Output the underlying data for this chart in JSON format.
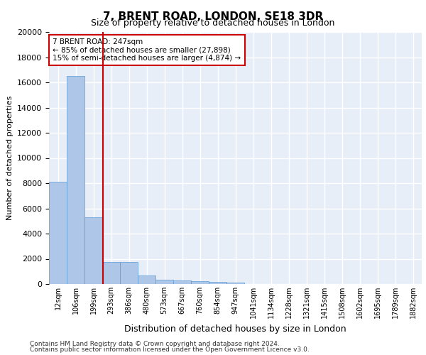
{
  "title": "7, BRENT ROAD, LONDON, SE18 3DR",
  "subtitle": "Size of property relative to detached houses in London",
  "xlabel": "Distribution of detached houses by size in London",
  "ylabel": "Number of detached properties",
  "bar_values": [
    8100,
    16500,
    5300,
    1750,
    1750,
    700,
    350,
    275,
    225,
    175,
    100,
    0,
    0,
    0,
    0,
    0,
    0,
    0,
    0,
    0,
    0
  ],
  "bar_color": "#aec6e8",
  "bar_edge_color": "#5b9bd5",
  "x_labels": [
    "12sqm",
    "106sqm",
    "199sqm",
    "293sqm",
    "386sqm",
    "480sqm",
    "573sqm",
    "667sqm",
    "760sqm",
    "854sqm",
    "947sqm",
    "1041sqm",
    "1134sqm",
    "1228sqm",
    "1321sqm",
    "1415sqm",
    "1508sqm",
    "1602sqm",
    "1695sqm",
    "1789sqm",
    "1882sqm"
  ],
  "ylim": [
    0,
    20000
  ],
  "yticks": [
    0,
    2000,
    4000,
    6000,
    8000,
    10000,
    12000,
    14000,
    16000,
    18000,
    20000
  ],
  "vline_pos": 2.55,
  "vline_color": "#cc0000",
  "annotation_title": "7 BRENT ROAD: 247sqm",
  "annotation_line1": "← 85% of detached houses are smaller (27,898)",
  "annotation_line2": "15% of semi-detached houses are larger (4,874) →",
  "annotation_box_color": "#cc0000",
  "background_color": "#e8eef8",
  "grid_color": "#ffffff",
  "footer_line1": "Contains HM Land Registry data © Crown copyright and database right 2024.",
  "footer_line2": "Contains public sector information licensed under the Open Government Licence v3.0."
}
